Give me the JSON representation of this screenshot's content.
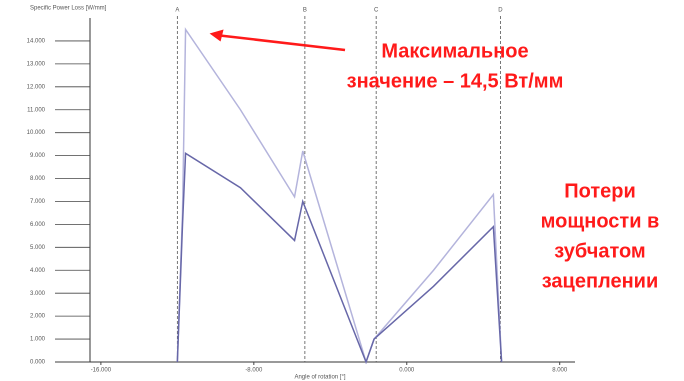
{
  "chart_data": {
    "type": "line",
    "y_label": "Specific Power Loss [W/mm]",
    "x_label": "Angle of rotation [°]",
    "x": [
      -12.0,
      -11.73,
      -11.57,
      -8.7,
      -5.87,
      -5.44,
      -2.13,
      -1.71,
      1.4,
      4.53,
      4.96
    ],
    "series": [
      {
        "color": "#b4b4dc",
        "values": [
          0,
          6.5,
          14.5,
          11.0,
          7.2,
          9.2,
          0,
          1.0,
          4.0,
          7.3,
          0
        ]
      },
      {
        "color": "#6767a8",
        "values": [
          0,
          6.0,
          9.1,
          7.6,
          5.3,
          7.0,
          0,
          1.0,
          3.3,
          5.9,
          0
        ]
      }
    ],
    "markers": [
      {
        "label": "A",
        "x": -12.0
      },
      {
        "label": "B",
        "x": -5.33
      },
      {
        "label": "C",
        "x": -1.6
      },
      {
        "label": "D",
        "x": 4.9
      }
    ],
    "xlim": [
      -18.4,
      8.8
    ],
    "xticks": [
      {
        "value": -16,
        "label": "-16.000"
      },
      {
        "value": -8,
        "label": "-8.000"
      },
      {
        "value": 0,
        "label": "0.000"
      },
      {
        "value": 8,
        "label": "8.000"
      }
    ],
    "ylim": [
      0,
      15
    ],
    "yticks": [
      {
        "value": 0,
        "label": "0.000"
      },
      {
        "value": 1,
        "label": "1.000"
      },
      {
        "value": 2,
        "label": "2.000"
      },
      {
        "value": 3,
        "label": "3.000"
      },
      {
        "value": 4,
        "label": "4.000"
      },
      {
        "value": 5,
        "label": "5.000"
      },
      {
        "value": 6,
        "label": "6.000"
      },
      {
        "value": 7,
        "label": "7.000"
      },
      {
        "value": 8,
        "label": "8.000"
      },
      {
        "value": 9,
        "label": "9.000"
      },
      {
        "value": 10,
        "label": "10.000"
      },
      {
        "value": 11,
        "label": "11.000"
      },
      {
        "value": 12,
        "label": "12.000"
      },
      {
        "value": 13,
        "label": "13.000"
      },
      {
        "value": 14,
        "label": "14.000"
      }
    ],
    "annotations": [
      {
        "lines": [
          "Максимальное",
          "значение – 14,5 Вт/мм"
        ],
        "color": "#ff1a1a"
      },
      {
        "lines": [
          "Потери",
          "мощности в",
          "зубчатом",
          "зацеплении"
        ],
        "color": "#ff1a1a"
      }
    ]
  }
}
